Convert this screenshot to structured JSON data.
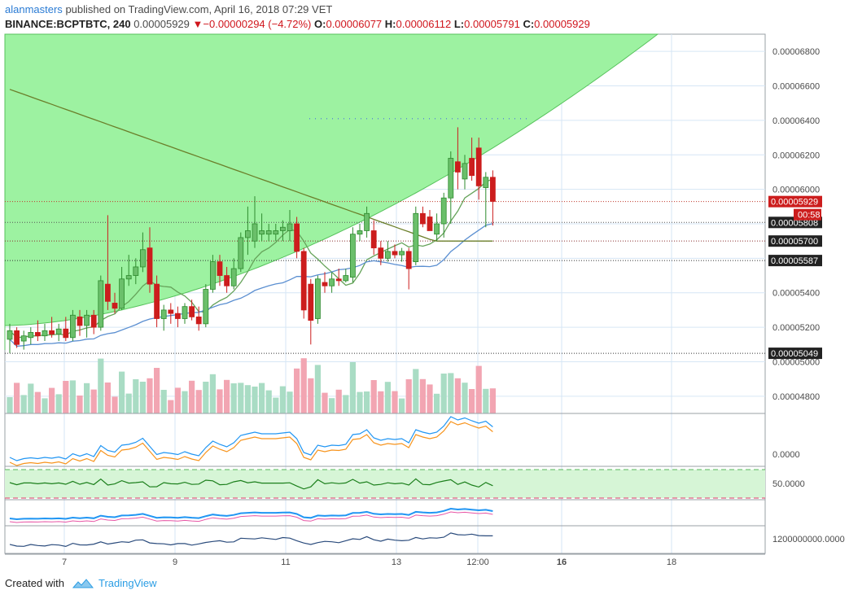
{
  "header": {
    "user": "alanmasters",
    "published_text": "published on TradingView.com, April 16, 2018 07:29 VET",
    "symbol": "BINANCE:BCPTBTC, 240",
    "last": "0.00005929",
    "change": "−0.00000294 (−4.72%)",
    "o_label": "O:",
    "o_value": "0.00006077",
    "h_label": "H:",
    "h_value": "0.00006112",
    "l_label": "L:",
    "l_value": "0.00005791",
    "c_label": "C:",
    "c_value": "0.00005929"
  },
  "footer": {
    "created_with": "Created with",
    "brand": "TradingView"
  },
  "colors": {
    "up": "#2e8b2e",
    "up_fill": "#6bbf6b",
    "down": "#cc1d1d",
    "cloud": "#9df2a1",
    "ma_fast": "#66a35a",
    "ma_slow": "#8a5a3a",
    "ma_green_dark": "#6b7f2a",
    "ma_blue": "#5b8fd1",
    "vol_up": "#a9dcc4",
    "vol_down": "#f2a5b2",
    "axis_text": "#4a4a4a"
  },
  "chart_data": {
    "type": "candlestick",
    "symbol": "BINANCE:BCPTBTC",
    "interval": "240",
    "x_ticks": [
      "7",
      "9",
      "11",
      "13",
      "12:00",
      "16",
      "18"
    ],
    "y_ticks": [
      "0.00004800",
      "0.00005000",
      "0.00005200",
      "0.00005400",
      "0.00005600",
      "0.00005800",
      "0.00006000",
      "0.00006200",
      "0.00006400",
      "0.00006600",
      "0.00006800"
    ],
    "ylim": [
      4.7e-05,
      6.9e-05
    ],
    "price_labels": [
      "0.00005929",
      "00:58",
      "0.00005808",
      "0.00005700",
      "0.00005587",
      "0.00005049"
    ],
    "candles": [
      {
        "o": 5.13,
        "h": 5.22,
        "l": 5.05,
        "c": 5.18
      },
      {
        "o": 5.18,
        "h": 5.2,
        "l": 5.08,
        "c": 5.1
      },
      {
        "o": 5.12,
        "h": 5.18,
        "l": 5.07,
        "c": 5.15
      },
      {
        "o": 5.14,
        "h": 5.2,
        "l": 5.1,
        "c": 5.17
      },
      {
        "o": 5.17,
        "h": 5.24,
        "l": 5.12,
        "c": 5.15
      },
      {
        "o": 5.15,
        "h": 5.22,
        "l": 5.12,
        "c": 5.18
      },
      {
        "o": 5.18,
        "h": 5.26,
        "l": 5.14,
        "c": 5.16
      },
      {
        "o": 5.16,
        "h": 5.22,
        "l": 5.12,
        "c": 5.19
      },
      {
        "o": 5.19,
        "h": 5.26,
        "l": 5.12,
        "c": 5.14
      },
      {
        "o": 5.14,
        "h": 5.3,
        "l": 5.12,
        "c": 5.27
      },
      {
        "o": 5.26,
        "h": 5.3,
        "l": 5.15,
        "c": 5.21
      },
      {
        "o": 5.21,
        "h": 5.3,
        "l": 5.14,
        "c": 5.27
      },
      {
        "o": 5.27,
        "h": 5.3,
        "l": 5.16,
        "c": 5.2
      },
      {
        "o": 5.2,
        "h": 5.5,
        "l": 5.18,
        "c": 5.47
      },
      {
        "o": 5.45,
        "h": 5.85,
        "l": 5.3,
        "c": 5.35
      },
      {
        "o": 5.34,
        "h": 5.4,
        "l": 5.28,
        "c": 5.31
      },
      {
        "o": 5.31,
        "h": 5.55,
        "l": 5.3,
        "c": 5.48
      },
      {
        "o": 5.48,
        "h": 5.62,
        "l": 5.44,
        "c": 5.5
      },
      {
        "o": 5.5,
        "h": 5.6,
        "l": 5.45,
        "c": 5.55
      },
      {
        "o": 5.55,
        "h": 5.75,
        "l": 5.52,
        "c": 5.65
      },
      {
        "o": 5.66,
        "h": 5.78,
        "l": 5.4,
        "c": 5.45
      },
      {
        "o": 5.45,
        "h": 5.5,
        "l": 5.2,
        "c": 5.25
      },
      {
        "o": 5.25,
        "h": 5.33,
        "l": 5.18,
        "c": 5.3
      },
      {
        "o": 5.3,
        "h": 5.34,
        "l": 5.22,
        "c": 5.28
      },
      {
        "o": 5.28,
        "h": 5.32,
        "l": 5.2,
        "c": 5.25
      },
      {
        "o": 5.25,
        "h": 5.34,
        "l": 5.22,
        "c": 5.32
      },
      {
        "o": 5.32,
        "h": 5.36,
        "l": 5.24,
        "c": 5.26
      },
      {
        "o": 5.26,
        "h": 5.32,
        "l": 5.18,
        "c": 5.22
      },
      {
        "o": 5.22,
        "h": 5.45,
        "l": 5.2,
        "c": 5.42
      },
      {
        "o": 5.42,
        "h": 5.62,
        "l": 5.4,
        "c": 5.58
      },
      {
        "o": 5.58,
        "h": 5.62,
        "l": 5.44,
        "c": 5.5
      },
      {
        "o": 5.5,
        "h": 5.55,
        "l": 5.4,
        "c": 5.44
      },
      {
        "o": 5.44,
        "h": 5.6,
        "l": 5.42,
        "c": 5.54
      },
      {
        "o": 5.54,
        "h": 5.75,
        "l": 5.52,
        "c": 5.72
      },
      {
        "o": 5.72,
        "h": 5.9,
        "l": 5.62,
        "c": 5.76
      },
      {
        "o": 5.7,
        "h": 5.96,
        "l": 5.66,
        "c": 5.8
      },
      {
        "o": 5.74,
        "h": 5.86,
        "l": 5.7,
        "c": 5.76
      },
      {
        "o": 5.74,
        "h": 5.8,
        "l": 5.7,
        "c": 5.76
      },
      {
        "o": 5.74,
        "h": 5.8,
        "l": 5.7,
        "c": 5.76
      },
      {
        "o": 5.76,
        "h": 5.82,
        "l": 5.7,
        "c": 5.78
      },
      {
        "o": 5.76,
        "h": 5.88,
        "l": 5.7,
        "c": 5.8
      },
      {
        "o": 5.8,
        "h": 5.84,
        "l": 5.6,
        "c": 5.64
      },
      {
        "o": 5.64,
        "h": 5.66,
        "l": 5.25,
        "c": 5.3
      },
      {
        "o": 5.45,
        "h": 5.48,
        "l": 5.1,
        "c": 5.24
      },
      {
        "o": 5.25,
        "h": 5.5,
        "l": 5.22,
        "c": 5.48
      },
      {
        "o": 5.46,
        "h": 5.52,
        "l": 5.4,
        "c": 5.44
      },
      {
        "o": 5.44,
        "h": 5.52,
        "l": 5.4,
        "c": 5.48
      },
      {
        "o": 5.48,
        "h": 5.54,
        "l": 5.44,
        "c": 5.47
      },
      {
        "o": 5.47,
        "h": 5.54,
        "l": 5.46,
        "c": 5.5
      },
      {
        "o": 5.49,
        "h": 5.78,
        "l": 5.46,
        "c": 5.74
      },
      {
        "o": 5.74,
        "h": 5.8,
        "l": 5.7,
        "c": 5.76
      },
      {
        "o": 5.76,
        "h": 5.9,
        "l": 5.72,
        "c": 5.86
      },
      {
        "o": 5.76,
        "h": 5.82,
        "l": 5.62,
        "c": 5.66
      },
      {
        "o": 5.66,
        "h": 5.7,
        "l": 5.56,
        "c": 5.6
      },
      {
        "o": 5.6,
        "h": 5.7,
        "l": 5.58,
        "c": 5.64
      },
      {
        "o": 5.64,
        "h": 5.68,
        "l": 5.6,
        "c": 5.62
      },
      {
        "o": 5.62,
        "h": 5.66,
        "l": 5.58,
        "c": 5.64
      },
      {
        "o": 5.64,
        "h": 5.66,
        "l": 5.42,
        "c": 5.54
      },
      {
        "o": 5.58,
        "h": 5.9,
        "l": 5.56,
        "c": 5.86
      },
      {
        "o": 5.86,
        "h": 5.9,
        "l": 5.78,
        "c": 5.8
      },
      {
        "o": 5.84,
        "h": 5.88,
        "l": 5.76,
        "c": 5.76
      },
      {
        "o": 5.74,
        "h": 5.86,
        "l": 5.7,
        "c": 5.8
      },
      {
        "o": 5.8,
        "h": 5.98,
        "l": 5.72,
        "c": 5.95
      },
      {
        "o": 5.95,
        "h": 6.22,
        "l": 5.8,
        "c": 6.18
      },
      {
        "o": 6.16,
        "h": 6.36,
        "l": 6.0,
        "c": 6.1
      },
      {
        "o": 6.06,
        "h": 6.2,
        "l": 6.0,
        "c": 6.15
      },
      {
        "o": 6.18,
        "h": 6.3,
        "l": 6.05,
        "c": 6.08
      },
      {
        "o": 6.24,
        "h": 6.3,
        "l": 5.94,
        "c": 6.02
      },
      {
        "o": 6.01,
        "h": 6.1,
        "l": 5.78,
        "c": 6.07
      },
      {
        "o": 6.07,
        "h": 6.11,
        "l": 5.79,
        "c": 5.93
      }
    ]
  }
}
